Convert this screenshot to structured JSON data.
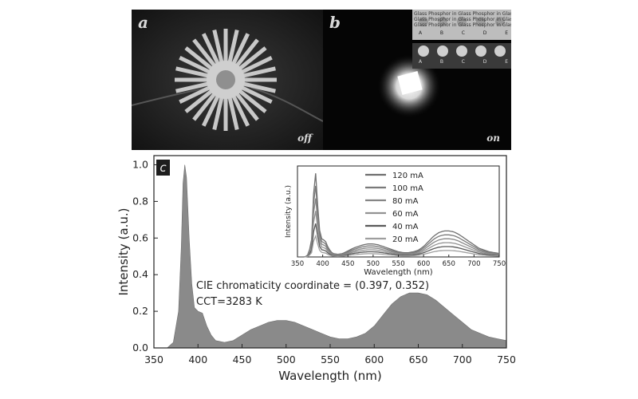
{
  "photos": {
    "a_label": "a",
    "b_label": "b",
    "off_label": "off",
    "on_label": "on",
    "sample_row_text": "Glass Phosphor in Glass Phosphor in Glass Phosphor in Glass Phosphor in Glass",
    "sample_letters": [
      "A",
      "B",
      "C",
      "D",
      "E"
    ]
  },
  "chart_data": [
    {
      "panel_label": "c",
      "type": "area",
      "title": "",
      "xlabel": "Wavelength (nm)",
      "ylabel": "Intensity (a.u.)",
      "xlim": [
        350,
        750
      ],
      "ylim": [
        0,
        1.05
      ],
      "x_ticks": [
        350,
        400,
        450,
        500,
        550,
        600,
        650,
        700,
        750
      ],
      "y_ticks": [
        0.0,
        0.2,
        0.4,
        0.6,
        0.8,
        1.0
      ],
      "color": "#8a8a8a",
      "annotations": [
        "CIE chromaticity coordinate = (0.397, 0.352)",
        "CCT=3283 K"
      ],
      "x": [
        350,
        365,
        372,
        378,
        381,
        383,
        385,
        387,
        390,
        393,
        396,
        400,
        405,
        410,
        415,
        420,
        430,
        440,
        450,
        460,
        470,
        480,
        490,
        500,
        510,
        520,
        530,
        540,
        550,
        560,
        570,
        580,
        590,
        600,
        610,
        620,
        630,
        640,
        650,
        660,
        670,
        680,
        690,
        700,
        710,
        720,
        730,
        740,
        750
      ],
      "y": [
        0.0,
        0.0,
        0.03,
        0.2,
        0.55,
        0.9,
        1.0,
        0.93,
        0.6,
        0.35,
        0.22,
        0.2,
        0.19,
        0.12,
        0.07,
        0.04,
        0.03,
        0.04,
        0.07,
        0.1,
        0.12,
        0.14,
        0.15,
        0.15,
        0.14,
        0.12,
        0.1,
        0.08,
        0.06,
        0.05,
        0.05,
        0.06,
        0.08,
        0.12,
        0.18,
        0.24,
        0.28,
        0.3,
        0.3,
        0.29,
        0.26,
        0.22,
        0.18,
        0.14,
        0.1,
        0.08,
        0.06,
        0.05,
        0.04
      ]
    },
    {
      "type": "line",
      "title": "",
      "inset": true,
      "xlabel": "Wavelength (nm)",
      "ylabel": "Intensity (a.u.)",
      "xlim": [
        350,
        750
      ],
      "x_ticks": [
        350,
        400,
        450,
        500,
        550,
        600,
        650,
        700,
        750
      ],
      "legend_position": "top-center",
      "series": [
        {
          "name": "120 mA",
          "scale": 1.0,
          "color": "#6f6f6f"
        },
        {
          "name": "100 mA",
          "scale": 0.85,
          "color": "#7a7a7a"
        },
        {
          "name": "80 mA",
          "scale": 0.7,
          "color": "#868686"
        },
        {
          "name": "60 mA",
          "scale": 0.55,
          "color": "#929292"
        },
        {
          "name": "40 mA",
          "scale": 0.4,
          "color": "#5a5a5a"
        },
        {
          "name": "20 mA",
          "scale": 0.25,
          "color": "#9e9e9e"
        }
      ]
    }
  ]
}
